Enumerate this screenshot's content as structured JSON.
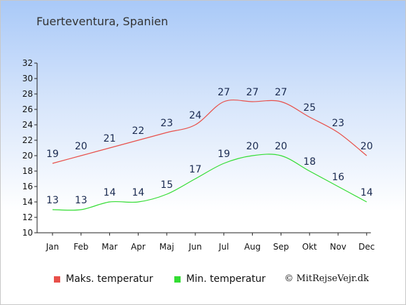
{
  "title": "Fuerteventura, Spanien",
  "credit": "© MitRejseVejr.dk",
  "colors": {
    "max": "#e8504a",
    "min": "#33dd33",
    "label": "#1a2a50"
  },
  "chart_data": {
    "type": "line",
    "categories": [
      "Jan",
      "Feb",
      "Mar",
      "Apr",
      "Maj",
      "Jun",
      "Jul",
      "Aug",
      "Sep",
      "Okt",
      "Nov",
      "Dec"
    ],
    "series": [
      {
        "name": "Maks. temperatur",
        "values": [
          19,
          20,
          21,
          22,
          23,
          24,
          27,
          27,
          27,
          25,
          23,
          20
        ]
      },
      {
        "name": "Min. temperatur",
        "values": [
          13,
          13,
          14,
          14,
          15,
          17,
          19,
          20,
          20,
          18,
          16,
          14
        ]
      }
    ],
    "ylim": [
      10,
      32
    ],
    "yticks": [
      10,
      12,
      14,
      16,
      18,
      20,
      22,
      24,
      26,
      28,
      30,
      32
    ],
    "legend": "bottom",
    "grid": false
  }
}
